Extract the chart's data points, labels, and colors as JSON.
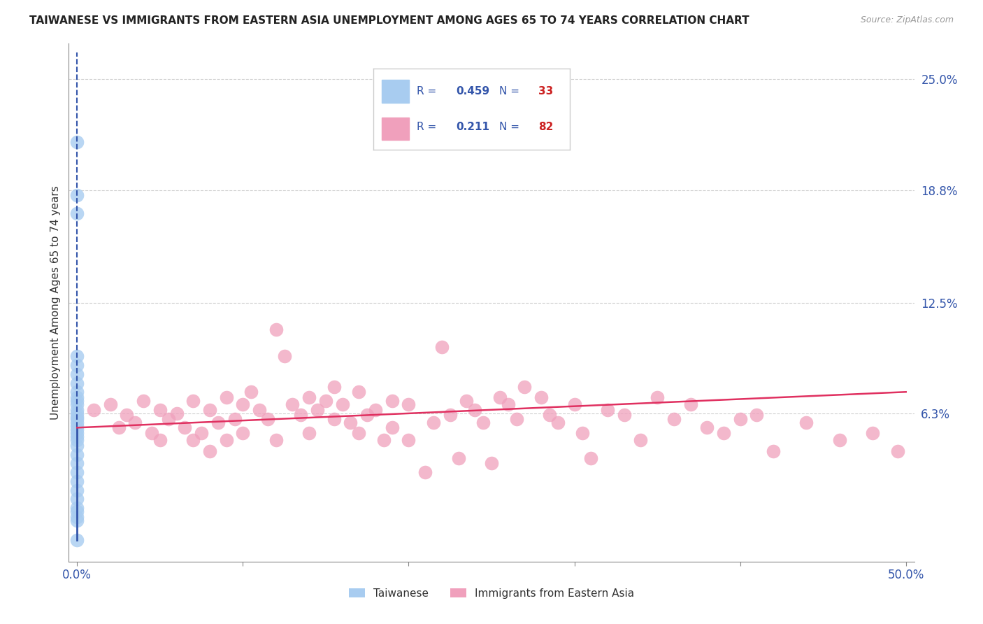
{
  "title": "TAIWANESE VS IMMIGRANTS FROM EASTERN ASIA UNEMPLOYMENT AMONG AGES 65 TO 74 YEARS CORRELATION CHART",
  "source": "Source: ZipAtlas.com",
  "ylabel": "Unemployment Among Ages 65 to 74 years",
  "xlim": [
    0.0,
    0.5
  ],
  "ylim": [
    -0.02,
    0.27
  ],
  "ytick_labels_right": [
    "25.0%",
    "18.8%",
    "12.5%",
    "6.3%"
  ],
  "ytick_values_right": [
    0.25,
    0.188,
    0.125,
    0.063
  ],
  "grid_color": "#d0d0d0",
  "background_color": "#ffffff",
  "taiwanese_color": "#a8ccf0",
  "immigrants_color": "#f0a0bc",
  "taiwanese_line_color": "#3355aa",
  "immigrants_line_color": "#e03060",
  "legend_R1": "0.459",
  "legend_N1": "33",
  "legend_R2": "0.211",
  "legend_N2": "82",
  "tw_scatter_x": [
    0.0,
    0.0,
    0.0,
    0.0,
    0.0,
    0.0,
    0.0,
    0.0,
    0.0,
    0.0,
    0.0,
    0.0,
    0.0,
    0.0,
    0.0,
    0.0,
    0.0,
    0.0,
    0.0,
    0.0,
    0.0,
    0.0,
    0.0,
    0.0,
    0.0,
    0.0,
    0.0,
    0.0,
    0.0,
    0.0,
    0.0,
    0.0,
    0.0
  ],
  "tw_scatter_y": [
    0.215,
    0.175,
    0.185,
    0.095,
    0.09,
    0.085,
    0.08,
    0.075,
    0.072,
    0.07,
    0.068,
    0.065,
    0.063,
    0.061,
    0.06,
    0.058,
    0.056,
    0.054,
    0.052,
    0.05,
    0.048,
    0.045,
    0.04,
    0.035,
    0.03,
    0.025,
    0.02,
    0.015,
    0.01,
    0.008,
    0.005,
    0.003,
    -0.008
  ],
  "im_scatter_x": [
    0.01,
    0.02,
    0.025,
    0.03,
    0.035,
    0.04,
    0.045,
    0.05,
    0.05,
    0.055,
    0.06,
    0.065,
    0.07,
    0.07,
    0.075,
    0.08,
    0.08,
    0.085,
    0.09,
    0.09,
    0.095,
    0.1,
    0.1,
    0.105,
    0.11,
    0.115,
    0.12,
    0.12,
    0.125,
    0.13,
    0.135,
    0.14,
    0.14,
    0.145,
    0.15,
    0.155,
    0.155,
    0.16,
    0.165,
    0.17,
    0.17,
    0.175,
    0.18,
    0.185,
    0.19,
    0.19,
    0.2,
    0.2,
    0.21,
    0.215,
    0.22,
    0.225,
    0.23,
    0.235,
    0.24,
    0.245,
    0.25,
    0.255,
    0.26,
    0.265,
    0.27,
    0.28,
    0.285,
    0.29,
    0.3,
    0.305,
    0.31,
    0.32,
    0.33,
    0.34,
    0.35,
    0.36,
    0.37,
    0.38,
    0.39,
    0.4,
    0.41,
    0.42,
    0.44,
    0.46,
    0.48,
    0.495
  ],
  "im_scatter_y": [
    0.065,
    0.068,
    0.055,
    0.062,
    0.058,
    0.07,
    0.052,
    0.065,
    0.048,
    0.06,
    0.063,
    0.055,
    0.07,
    0.048,
    0.052,
    0.065,
    0.042,
    0.058,
    0.072,
    0.048,
    0.06,
    0.068,
    0.052,
    0.075,
    0.065,
    0.06,
    0.11,
    0.048,
    0.095,
    0.068,
    0.062,
    0.072,
    0.052,
    0.065,
    0.07,
    0.06,
    0.078,
    0.068,
    0.058,
    0.075,
    0.052,
    0.062,
    0.065,
    0.048,
    0.07,
    0.055,
    0.068,
    0.048,
    0.03,
    0.058,
    0.1,
    0.062,
    0.038,
    0.07,
    0.065,
    0.058,
    0.035,
    0.072,
    0.068,
    0.06,
    0.078,
    0.072,
    0.062,
    0.058,
    0.068,
    0.052,
    0.038,
    0.065,
    0.062,
    0.048,
    0.072,
    0.06,
    0.068,
    0.055,
    0.052,
    0.06,
    0.062,
    0.042,
    0.058,
    0.048,
    0.052,
    0.042
  ],
  "tw_line": [
    [
      0.0,
      0.0
    ],
    [
      0.055,
      0.27
    ]
  ],
  "tw_line_dashed": [
    [
      0.0,
      0.0
    ],
    [
      0.055,
      0.27
    ]
  ],
  "im_line_x": [
    0.0,
    0.5
  ],
  "im_line_y": [
    0.055,
    0.075
  ]
}
